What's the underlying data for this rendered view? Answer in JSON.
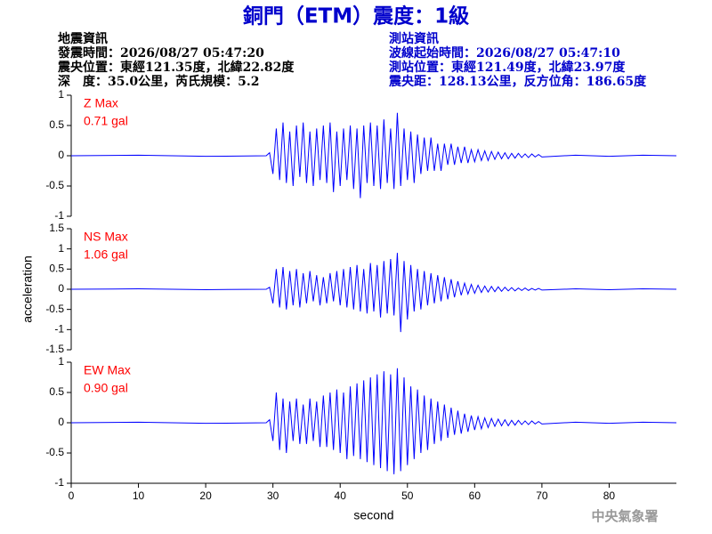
{
  "header": {
    "title": "銅門（ETM）震度：1級",
    "left_lines": [
      "地震資訊",
      "發震時間：2026/08/27 05:47:20",
      "震央位置：東經121.35度，北緯22.82度",
      "深　度：35.0公里，芮氏規模：5.2"
    ],
    "right_lines": [
      "測站資訊",
      "波線起始時間：2026/08/27 05:47:10",
      "測站位置：東經121.49度，北緯23.97度",
      "震央距：128.13公里，反方位角：186.65度"
    ]
  },
  "footer": "中央氣象署",
  "chart_data": [
    {
      "type": "line",
      "color": "#0000ff",
      "annotation": [
        "Z Max",
        "0.71 gal"
      ],
      "annotation_color": "#ff0000",
      "xlim": [
        0,
        90
      ],
      "ylim": [
        -1,
        1
      ],
      "yticks": [
        -1,
        -0.5,
        0,
        0.5,
        1
      ],
      "x": [
        0,
        10,
        20,
        29,
        29.5,
        30,
        30.5,
        31,
        31.5,
        32,
        32.5,
        33,
        33.5,
        34,
        34.5,
        35,
        35.5,
        36,
        36.5,
        37,
        37.5,
        38,
        38.5,
        39,
        39.5,
        40,
        40.5,
        41,
        41.5,
        42,
        42.5,
        43,
        43.5,
        44,
        44.5,
        45,
        45.5,
        46,
        46.5,
        47,
        47.5,
        48,
        48.5,
        49,
        49.5,
        50,
        50.5,
        51,
        51.5,
        52,
        52.5,
        53,
        53.5,
        54,
        54.5,
        55,
        55.5,
        56,
        56.5,
        57,
        57.5,
        58,
        58.5,
        59,
        59.5,
        60,
        60.5,
        61,
        61.5,
        62,
        62.5,
        63,
        63.5,
        64,
        64.5,
        65,
        65.5,
        66,
        66.5,
        67,
        67.5,
        68,
        68.5,
        69,
        69.5,
        70,
        75,
        80,
        85,
        90
      ],
      "values": [
        0,
        0.01,
        -0.01,
        0,
        0.05,
        -0.3,
        0.45,
        -0.4,
        0.55,
        -0.45,
        0.4,
        -0.5,
        0.5,
        -0.35,
        0.55,
        -0.45,
        0.4,
        -0.5,
        0.45,
        -0.4,
        0.5,
        -0.45,
        0.55,
        -0.6,
        0.4,
        -0.5,
        0.45,
        -0.4,
        0.5,
        -0.55,
        0.45,
        -0.7,
        0.5,
        -0.45,
        0.55,
        -0.5,
        0.5,
        -0.55,
        0.6,
        -0.45,
        0.45,
        -0.55,
        0.71,
        -0.5,
        0.45,
        -0.4,
        0.4,
        -0.45,
        0.35,
        -0.3,
        0.3,
        -0.25,
        0.3,
        -0.25,
        0.2,
        -0.25,
        0.2,
        -0.15,
        0.2,
        -0.15,
        0.15,
        -0.12,
        0.15,
        -0.12,
        0.1,
        -0.1,
        0.1,
        -0.08,
        0.08,
        -0.08,
        0.07,
        -0.06,
        0.06,
        -0.05,
        0.05,
        -0.05,
        0.04,
        -0.04,
        0.04,
        -0.03,
        0.03,
        -0.03,
        0.03,
        -0.02,
        0.02,
        -0.02,
        0.01,
        -0.01,
        0.01,
        0
      ]
    },
    {
      "type": "line",
      "color": "#0000ff",
      "annotation": [
        "NS Max",
        "1.06 gal"
      ],
      "annotation_color": "#ff0000",
      "ylabel": "acceleration",
      "xlim": [
        0,
        90
      ],
      "ylim": [
        -1.5,
        1.5
      ],
      "yticks": [
        -1.5,
        -1,
        -0.5,
        0,
        0.5,
        1,
        1.5
      ],
      "x": [
        0,
        10,
        20,
        29,
        29.5,
        30,
        30.5,
        31,
        31.5,
        32,
        32.5,
        33,
        33.5,
        34,
        34.5,
        35,
        35.5,
        36,
        36.5,
        37,
        37.5,
        38,
        38.5,
        39,
        39.5,
        40,
        40.5,
        41,
        41.5,
        42,
        42.5,
        43,
        43.5,
        44,
        44.5,
        45,
        45.5,
        46,
        46.5,
        47,
        47.5,
        48,
        48.5,
        49,
        49.5,
        50,
        50.5,
        51,
        51.5,
        52,
        52.5,
        53,
        53.5,
        54,
        54.5,
        55,
        55.5,
        56,
        56.5,
        57,
        57.5,
        58,
        58.5,
        59,
        59.5,
        60,
        60.5,
        61,
        61.5,
        62,
        62.5,
        63,
        63.5,
        64,
        64.5,
        65,
        65.5,
        66,
        66.5,
        67,
        67.5,
        68,
        68.5,
        69,
        69.5,
        70,
        75,
        80,
        85,
        90
      ],
      "values": [
        0,
        0.01,
        -0.01,
        0,
        0.05,
        -0.35,
        0.5,
        -0.45,
        0.55,
        -0.5,
        0.45,
        -0.4,
        0.5,
        -0.45,
        0.4,
        -0.35,
        0.45,
        -0.3,
        0.35,
        -0.4,
        0.3,
        -0.35,
        0.4,
        -0.3,
        0.45,
        -0.4,
        0.5,
        -0.45,
        0.55,
        -0.5,
        0.6,
        -0.55,
        0.5,
        -0.6,
        0.65,
        -0.55,
        0.6,
        -0.7,
        0.7,
        -0.6,
        0.75,
        -0.65,
        0.9,
        -1.06,
        0.7,
        -0.75,
        0.6,
        -0.55,
        0.5,
        -0.5,
        0.45,
        -0.4,
        0.4,
        -0.35,
        0.35,
        -0.3,
        0.3,
        -0.25,
        0.25,
        -0.2,
        0.2,
        -0.15,
        0.15,
        -0.12,
        0.12,
        -0.1,
        0.1,
        -0.08,
        0.08,
        -0.07,
        0.07,
        -0.06,
        0.06,
        -0.05,
        0.05,
        -0.04,
        0.04,
        -0.04,
        0.03,
        -0.03,
        0.03,
        -0.03,
        0.02,
        -0.02,
        0.02,
        -0.02,
        0.01,
        -0.01,
        0.01,
        0
      ]
    },
    {
      "type": "line",
      "color": "#0000ff",
      "annotation": [
        "EW Max",
        "0.90 gal"
      ],
      "annotation_color": "#ff0000",
      "xlabel": "second",
      "xlim": [
        0,
        90
      ],
      "ylim": [
        -1,
        1
      ],
      "yticks": [
        -1,
        -0.5,
        0,
        0.5,
        1
      ],
      "xticks": [
        0,
        10,
        20,
        30,
        40,
        50,
        60,
        70,
        80
      ],
      "x": [
        0,
        10,
        20,
        29,
        29.5,
        30,
        30.5,
        31,
        31.5,
        32,
        32.5,
        33,
        33.5,
        34,
        34.5,
        35,
        35.5,
        36,
        36.5,
        37,
        37.5,
        38,
        38.5,
        39,
        39.5,
        40,
        40.5,
        41,
        41.5,
        42,
        42.5,
        43,
        43.5,
        44,
        44.5,
        45,
        45.5,
        46,
        46.5,
        47,
        47.5,
        48,
        48.5,
        49,
        49.5,
        50,
        50.5,
        51,
        51.5,
        52,
        52.5,
        53,
        53.5,
        54,
        54.5,
        55,
        55.5,
        56,
        56.5,
        57,
        57.5,
        58,
        58.5,
        59,
        59.5,
        60,
        60.5,
        61,
        61.5,
        62,
        62.5,
        63,
        63.5,
        64,
        64.5,
        65,
        65.5,
        66,
        66.5,
        67,
        67.5,
        68,
        68.5,
        69,
        69.5,
        70,
        75,
        80,
        85,
        90
      ],
      "values": [
        0,
        0.01,
        -0.01,
        0,
        0.05,
        -0.3,
        0.5,
        -0.45,
        0.4,
        -0.5,
        0.35,
        -0.3,
        0.4,
        -0.35,
        0.3,
        -0.35,
        0.4,
        -0.3,
        0.35,
        -0.4,
        0.45,
        -0.4,
        0.5,
        -0.45,
        0.55,
        -0.5,
        0.5,
        -0.6,
        0.6,
        -0.55,
        0.65,
        -0.6,
        0.7,
        -0.65,
        0.75,
        -0.7,
        0.8,
        -0.75,
        0.85,
        -0.8,
        0.8,
        -0.85,
        0.9,
        -0.8,
        0.75,
        -0.7,
        0.6,
        -0.6,
        0.55,
        -0.5,
        0.45,
        -0.45,
        0.4,
        -0.35,
        0.35,
        -0.3,
        0.3,
        -0.25,
        0.25,
        -0.2,
        0.2,
        -0.18,
        0.15,
        -0.15,
        0.12,
        -0.12,
        0.1,
        -0.1,
        0.08,
        -0.08,
        0.07,
        -0.06,
        0.06,
        -0.05,
        0.05,
        -0.05,
        0.04,
        -0.04,
        0.04,
        -0.03,
        0.03,
        -0.03,
        0.03,
        -0.02,
        0.02,
        -0.02,
        0.01,
        -0.01,
        0.01,
        0
      ]
    }
  ]
}
